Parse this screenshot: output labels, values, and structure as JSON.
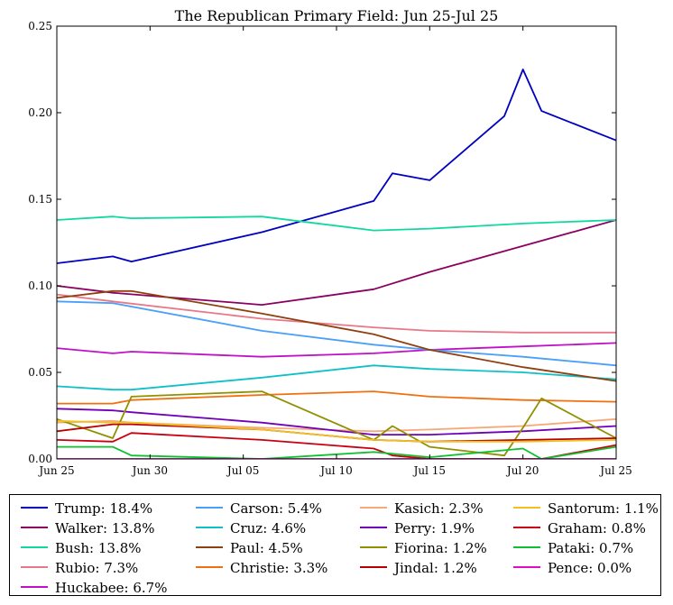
{
  "chart_data": {
    "type": "line",
    "title": "The Republican Primary Field: Jun 25-Jul 25",
    "xlabel": "",
    "ylabel": "",
    "x_ticks": [
      "Jun 25",
      "Jun 30",
      "Jul 05",
      "Jul 10",
      "Jul 15",
      "Jul 20",
      "Jul 25"
    ],
    "xlim": [
      "Jun 25",
      "Jul 25"
    ],
    "ylim": [
      0,
      0.25
    ],
    "y_ticks": [
      "0.00",
      "0.05",
      "0.10",
      "0.15",
      "0.20",
      "0.25"
    ],
    "grid": false,
    "legend_position": "bottom",
    "series": [
      {
        "name": "Trump: 18.4%",
        "color": "#0000c0",
        "x": [
          "Jun 25",
          "Jun 28",
          "Jun 29",
          "Jul 06",
          "Jul 12",
          "Jul 13",
          "Jul 15",
          "Jul 19",
          "Jul 20",
          "Jul 21",
          "Jul 25"
        ],
        "y": [
          0.113,
          0.117,
          0.114,
          0.131,
          0.149,
          0.165,
          0.161,
          0.198,
          0.225,
          0.201,
          0.184
        ]
      },
      {
        "name": "Walker: 13.8%",
        "color": "#8b0060",
        "x": [
          "Jun 25",
          "Jun 28",
          "Jul 06",
          "Jul 12",
          "Jul 15",
          "Jul 20",
          "Jul 25"
        ],
        "y": [
          0.1,
          0.096,
          0.089,
          0.098,
          0.108,
          0.123,
          0.138
        ]
      },
      {
        "name": "Bush: 13.8%",
        "color": "#10d8a0",
        "x": [
          "Jun 25",
          "Jun 28",
          "Jun 29",
          "Jul 06",
          "Jul 12",
          "Jul 15",
          "Jul 20",
          "Jul 25"
        ],
        "y": [
          0.138,
          0.14,
          0.139,
          0.14,
          0.132,
          0.133,
          0.136,
          0.138
        ]
      },
      {
        "name": "Rubio: 7.3%",
        "color": "#e87888",
        "x": [
          "Jun 25",
          "Jun 28",
          "Jul 06",
          "Jul 12",
          "Jul 15",
          "Jul 20",
          "Jul 25"
        ],
        "y": [
          0.095,
          0.091,
          0.081,
          0.076,
          0.074,
          0.073,
          0.073
        ]
      },
      {
        "name": "Huckabee: 6.7%",
        "color": "#c010c8",
        "x": [
          "Jun 25",
          "Jun 28",
          "Jun 29",
          "Jul 06",
          "Jul 12",
          "Jul 15",
          "Jul 20",
          "Jul 25"
        ],
        "y": [
          0.064,
          0.061,
          0.062,
          0.059,
          0.061,
          0.063,
          0.065,
          0.067
        ]
      },
      {
        "name": "Carson: 5.4%",
        "color": "#4aa0f8",
        "x": [
          "Jun 25",
          "Jun 28",
          "Jul 06",
          "Jul 12",
          "Jul 15",
          "Jul 20",
          "Jul 25"
        ],
        "y": [
          0.091,
          0.09,
          0.074,
          0.066,
          0.063,
          0.059,
          0.054
        ]
      },
      {
        "name": "Cruz: 4.6%",
        "color": "#10c0c8",
        "x": [
          "Jun 25",
          "Jun 28",
          "Jun 29",
          "Jul 06",
          "Jul 12",
          "Jul 15",
          "Jul 20",
          "Jul 25"
        ],
        "y": [
          0.042,
          0.04,
          0.04,
          0.047,
          0.054,
          0.052,
          0.05,
          0.046
        ]
      },
      {
        "name": "Paul: 4.5%",
        "color": "#904010",
        "x": [
          "Jun 25",
          "Jun 28",
          "Jun 29",
          "Jul 06",
          "Jul 12",
          "Jul 15",
          "Jul 20",
          "Jul 25"
        ],
        "y": [
          0.093,
          0.097,
          0.097,
          0.084,
          0.072,
          0.063,
          0.053,
          0.045
        ]
      },
      {
        "name": "Christie: 3.3%",
        "color": "#f07010",
        "x": [
          "Jun 25",
          "Jun 28",
          "Jun 29",
          "Jul 06",
          "Jul 12",
          "Jul 13",
          "Jul 15",
          "Jul 20",
          "Jul 25"
        ],
        "y": [
          0.032,
          0.032,
          0.034,
          0.037,
          0.039,
          0.038,
          0.036,
          0.034,
          0.033
        ]
      },
      {
        "name": "Kasich: 2.3%",
        "color": "#f8a878",
        "x": [
          "Jun 25",
          "Jun 28",
          "Jun 29",
          "Jul 06",
          "Jul 12",
          "Jul 15",
          "Jul 20",
          "Jul 25"
        ],
        "y": [
          0.021,
          0.022,
          0.021,
          0.018,
          0.016,
          0.017,
          0.019,
          0.023
        ]
      },
      {
        "name": "Perry: 1.9%",
        "color": "#7000b8",
        "x": [
          "Jun 25",
          "Jun 28",
          "Jun 29",
          "Jul 06",
          "Jul 12",
          "Jul 15",
          "Jul 20",
          "Jul 25"
        ],
        "y": [
          0.029,
          0.028,
          0.027,
          0.021,
          0.014,
          0.014,
          0.016,
          0.019
        ]
      },
      {
        "name": "Fiorina: 1.2%",
        "color": "#909000",
        "x": [
          "Jun 25",
          "Jun 28",
          "Jun 29",
          "Jul 06",
          "Jul 12",
          "Jul 13",
          "Jul 15",
          "Jul 19",
          "Jul 20",
          "Jul 21",
          "Jul 25"
        ],
        "y": [
          0.023,
          0.012,
          0.036,
          0.039,
          0.011,
          0.019,
          0.007,
          0.002,
          0.018,
          0.035,
          0.012
        ]
      },
      {
        "name": "Jindal: 1.2%",
        "color": "#b80000",
        "x": [
          "Jun 25",
          "Jun 28",
          "Jun 29",
          "Jul 06",
          "Jul 12",
          "Jul 15",
          "Jul 20",
          "Jul 25"
        ],
        "y": [
          0.016,
          0.02,
          0.02,
          0.017,
          0.011,
          0.01,
          0.011,
          0.012
        ]
      },
      {
        "name": "Santorum: 1.1%",
        "color": "#f0c020",
        "x": [
          "Jun 25",
          "Jun 28",
          "Jun 29",
          "Jul 06",
          "Jul 12",
          "Jul 15",
          "Jul 20",
          "Jul 25"
        ],
        "y": [
          0.022,
          0.021,
          0.021,
          0.017,
          0.011,
          0.01,
          0.01,
          0.011
        ]
      },
      {
        "name": "Graham: 0.8%",
        "color": "#c80010",
        "x": [
          "Jun 25",
          "Jun 28",
          "Jun 29",
          "Jul 06",
          "Jul 12",
          "Jul 13",
          "Jul 15",
          "Jul 20",
          "Jul 21",
          "Jul 25"
        ],
        "y": [
          0.011,
          0.01,
          0.015,
          0.011,
          0.006,
          0.002,
          0.0,
          0.0,
          0.0,
          0.008
        ]
      },
      {
        "name": "Pataki: 0.7%",
        "color": "#10c030",
        "x": [
          "Jun 25",
          "Jun 28",
          "Jun 29",
          "Jul 06",
          "Jul 12",
          "Jul 15",
          "Jul 19",
          "Jul 20",
          "Jul 21",
          "Jul 25"
        ],
        "y": [
          0.007,
          0.007,
          0.002,
          0.0,
          0.004,
          0.001,
          0.005,
          0.006,
          0.0,
          0.007
        ]
      },
      {
        "name": "Pence: 0.0%",
        "color": "#e010c0",
        "x": [
          "Jun 25",
          "Jul 25"
        ],
        "y": [
          0.0,
          0.0
        ]
      }
    ]
  }
}
